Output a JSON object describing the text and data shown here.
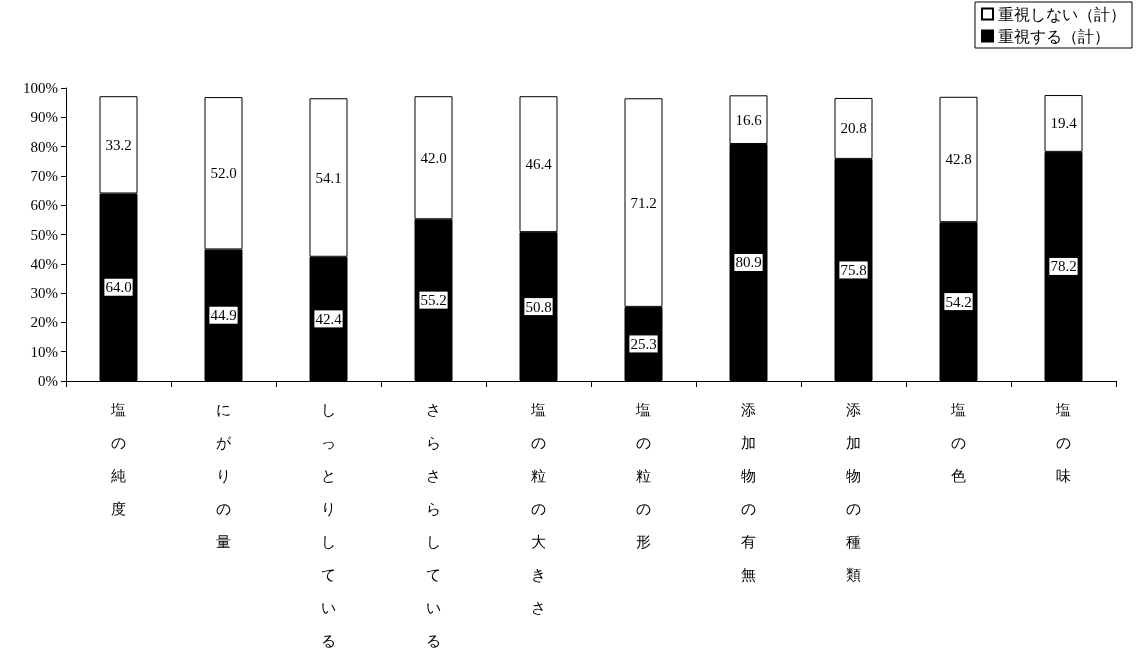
{
  "chart_data": {
    "type": "bar",
    "stacked": true,
    "categories": [
      "塩の純度",
      "にがりの量",
      "しっとりしている",
      "さらさらしている",
      "塩の粒の大きさ",
      "塩の粒の形",
      "添加物の有無",
      "添加物の種類",
      "塩の色",
      "塩の味"
    ],
    "series": [
      {
        "name": "重視する（計）",
        "color": "#000000",
        "values": [
          64.0,
          44.9,
          42.4,
          55.2,
          50.8,
          25.3,
          80.9,
          75.8,
          54.2,
          78.2
        ],
        "value_labels": [
          "64.0",
          "44.9",
          "42.4",
          "55.2",
          "50.8",
          "25.3",
          "80.9",
          "75.8",
          "54.2",
          "78.2"
        ]
      },
      {
        "name": "重視しない（計）",
        "color": "#ffffff",
        "values": [
          33.2,
          52.0,
          54.1,
          42.0,
          46.4,
          71.2,
          16.6,
          20.8,
          42.8,
          19.4
        ],
        "value_labels": [
          "33.2",
          "52.0",
          "54.1",
          "42.0",
          "46.4",
          "71.2",
          "16.6",
          "20.8",
          "42.8",
          "19.4"
        ]
      }
    ],
    "ylim": [
      0,
      100
    ],
    "yticks": [
      {
        "value": 0,
        "label": "0%"
      },
      {
        "value": 10,
        "label": "10%"
      },
      {
        "value": 20,
        "label": "20%"
      },
      {
        "value": 30,
        "label": "30%"
      },
      {
        "value": 40,
        "label": "40%"
      },
      {
        "value": 50,
        "label": "50%"
      },
      {
        "value": 60,
        "label": "60%"
      },
      {
        "value": 70,
        "label": "70%"
      },
      {
        "value": 80,
        "label": "80%"
      },
      {
        "value": 90,
        "label": "90%"
      },
      {
        "value": 100,
        "label": "100%"
      }
    ],
    "grid": false,
    "legend": "top right"
  }
}
